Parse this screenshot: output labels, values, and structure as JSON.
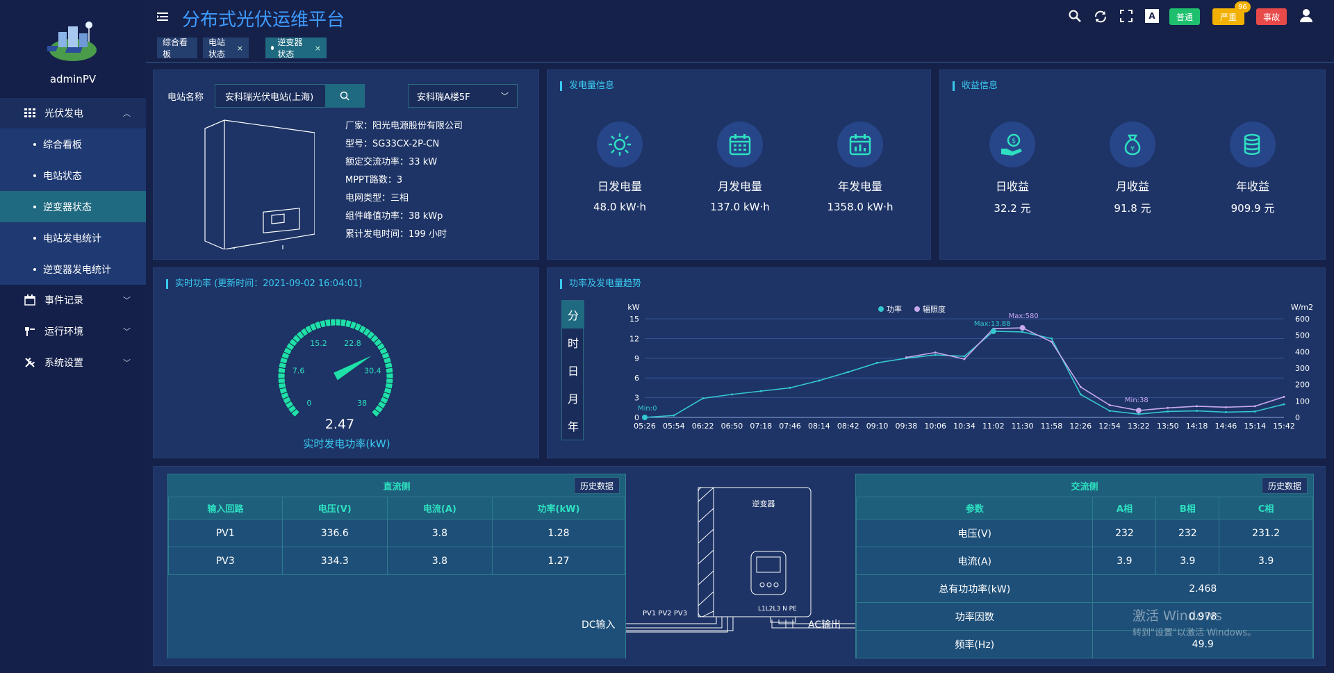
{
  "user": {
    "name": "adminPV"
  },
  "sidebar": {
    "groups": [
      {
        "label": "光伏发电",
        "icon": "grid-icon",
        "expanded": true,
        "items": [
          {
            "label": "综合看板"
          },
          {
            "label": "电站状态"
          },
          {
            "label": "逆变器状态",
            "active": true
          },
          {
            "label": "电站发电统计"
          },
          {
            "label": "逆变器发电统计"
          }
        ]
      },
      {
        "label": "事件记录",
        "icon": "calendar-icon"
      },
      {
        "label": "运行环境",
        "icon": "tools-icon"
      },
      {
        "label": "系统设置",
        "icon": "wrench-icon"
      }
    ]
  },
  "header": {
    "title": "分布式光伏运维平台",
    "tabs": [
      {
        "label": "综合看板"
      },
      {
        "label": "电站状态",
        "closable": true
      },
      {
        "label": "逆变器状态",
        "closable": true,
        "active": true
      }
    ],
    "badges": {
      "normal": "普通",
      "severe": "严重",
      "severe_count": "96",
      "fault": "事故"
    }
  },
  "station": {
    "name_label": "电站名称",
    "name_value": "安科瑞光伏电站(上海)",
    "inverter_select": "安科瑞A楼5F",
    "info": [
      {
        "k": "厂家：",
        "v": "阳光电源股份有限公司"
      },
      {
        "k": "型号：",
        "v": "SG33CX-2P-CN"
      },
      {
        "k": "额定交流功率：",
        "v": "33 kW"
      },
      {
        "k": "MPPT路数：",
        "v": "3"
      },
      {
        "k": "电网类型：",
        "v": "三相"
      },
      {
        "k": "组件峰值功率：",
        "v": "38 kWp"
      },
      {
        "k": "累计发电时间：",
        "v": "199 小时"
      }
    ]
  },
  "generation": {
    "title": "发电量信息",
    "day": {
      "label": "日发电量",
      "value": "48.0 kW·h",
      "icon": "sun-icon"
    },
    "month": {
      "label": "月发电量",
      "value": "137.0 kW·h",
      "icon": "calendar-icon"
    },
    "year": {
      "label": "年发电量",
      "value": "1358.0 kW·h",
      "icon": "calendar-chart-icon"
    }
  },
  "revenue": {
    "title": "收益信息",
    "day": {
      "label": "日收益",
      "value": "32.2 元",
      "icon": "money-hand-icon"
    },
    "month": {
      "label": "月收益",
      "value": "91.8 元",
      "icon": "money-bag-icon"
    },
    "year": {
      "label": "年收益",
      "value": "909.9 元",
      "icon": "coins-icon"
    }
  },
  "realtime": {
    "title": "实时功率 (更新时间：2021-09-02 16:04:01)",
    "value": 2.47,
    "value_text": "2.47",
    "max": 38,
    "ticks": [
      "0",
      "7.6",
      "15.2",
      "22.8",
      "30.4",
      "38"
    ],
    "caption": "实时发电功率(kW)"
  },
  "trend": {
    "title": "功率及发电量趋势",
    "ranges": [
      "分",
      "时",
      "日",
      "月",
      "年"
    ],
    "active_range": "分"
  },
  "chart_data": {
    "type": "line",
    "x": [
      "05:26",
      "05:54",
      "06:22",
      "06:50",
      "07:18",
      "07:46",
      "08:14",
      "08:42",
      "09:10",
      "09:38",
      "10:06",
      "10:34",
      "11:02",
      "11:30",
      "11:58",
      "12:26",
      "12:54",
      "13:22",
      "13:50",
      "14:18",
      "14:46",
      "15:14",
      "15:42"
    ],
    "series": [
      {
        "name": "功率",
        "axis": "left",
        "color": "#33c7d0",
        "values": [
          0,
          0.3,
          2.9,
          3.5,
          4.0,
          4.5,
          5.6,
          6.9,
          8.3,
          9.0,
          9.5,
          9.3,
          13.1,
          13.0,
          12.0,
          3.5,
          1.0,
          0.5,
          0.9,
          1.0,
          0.8,
          0.9,
          2.0
        ]
      },
      {
        "name": "辐照度",
        "axis": "right",
        "color": "#c8a8f0",
        "values": [
          null,
          null,
          null,
          null,
          null,
          null,
          null,
          null,
          null,
          365,
          395,
          355,
          540,
          545,
          460,
          185,
          75,
          42,
          58,
          68,
          62,
          68,
          125
        ]
      }
    ],
    "ylabel_left": "kW",
    "ylabel_right": "W/m2",
    "ylim_left": [
      0,
      15
    ],
    "yticks_left": [
      0,
      3,
      6,
      9,
      12,
      15
    ],
    "ylim_right": [
      0,
      600
    ],
    "yticks_right": [
      0,
      100,
      200,
      300,
      400,
      500,
      600
    ],
    "annotations": [
      "Min:0",
      "Max:13.88",
      "Max:580",
      "Min:38"
    ],
    "legend_position": "top-center",
    "grid": true
  },
  "dc": {
    "title": "直流侧",
    "history_label": "历史数据",
    "headers": [
      "输入回路",
      "电压(V)",
      "电流(A)",
      "功率(kW)"
    ],
    "rows": [
      [
        "PV1",
        "336.6",
        "3.8",
        "1.28"
      ],
      [
        "PV3",
        "334.3",
        "3.8",
        "1.27"
      ]
    ]
  },
  "diagram": {
    "inverter_label": "逆变器",
    "dc_label": "DC输入",
    "ac_label": "AC输出",
    "pv_ports": "PV1  PV2  PV3",
    "ac_ports": "L1L2L3 N PE"
  },
  "ac": {
    "title": "交流侧",
    "history_label": "历史数据",
    "headers": [
      "参数",
      "A相",
      "B相",
      "C相"
    ],
    "rows": [
      [
        "电压(V)",
        "232",
        "232",
        "231.2"
      ],
      [
        "电流(A)",
        "3.9",
        "3.9",
        "3.9"
      ]
    ],
    "single_rows": [
      [
        "总有功功率(kW)",
        "2.468"
      ],
      [
        "功率因数",
        "0.978"
      ],
      [
        "频率(Hz)",
        "49.9"
      ]
    ]
  },
  "watermark": {
    "line1": "激活 Windows",
    "line2": "转到\"设置\"以激活 Windows。"
  }
}
